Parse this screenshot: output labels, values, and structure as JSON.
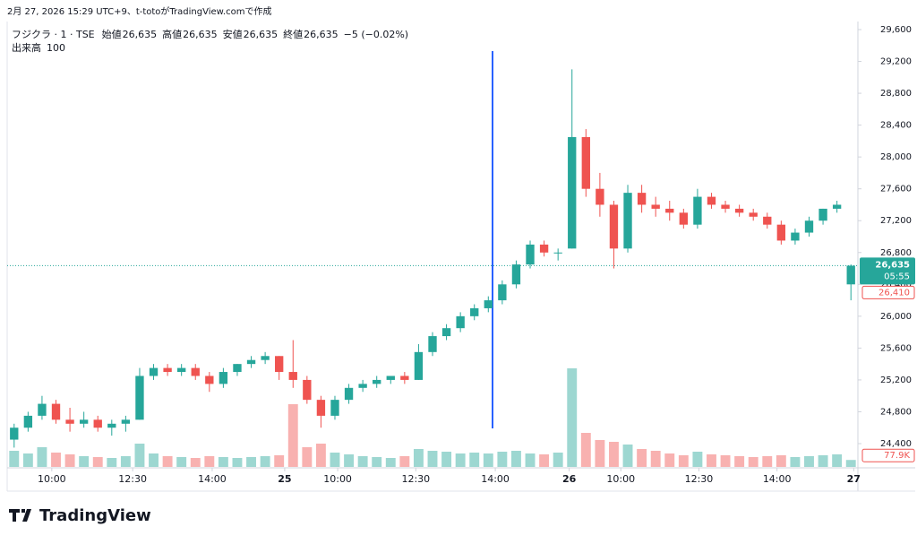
{
  "chart_data": {
    "type": "candlestick",
    "caption": "2月 27, 2026 15:29 UTC+9、t-totoがTradingView.comで作成",
    "legend": {
      "symbol": "フジクラ · 1 · TSE",
      "fields": [
        {
          "label": "始値",
          "value": "26,635"
        },
        {
          "label": "高値",
          "value": "26,635"
        },
        {
          "label": "安値",
          "value": "26,635"
        },
        {
          "label": "終値",
          "value": "26,635"
        }
      ],
      "change": "−5 (−0.02%)",
      "volume_name": "出来高",
      "volume_value": "100"
    },
    "up_color": "#26a69a",
    "down_color": "#ef5350",
    "grid": false,
    "xlim": [
      0,
      61
    ],
    "xticks": [
      {
        "value": 3.2,
        "label": "10:00"
      },
      {
        "value": 9.0,
        "label": "12:30"
      },
      {
        "value": 14.7,
        "label": "14:00"
      },
      {
        "value": 19.9,
        "label": "25"
      },
      {
        "value": 23.7,
        "label": "10:00"
      },
      {
        "value": 29.3,
        "label": "12:30"
      },
      {
        "value": 35.0,
        "label": "14:00"
      },
      {
        "value": 40.3,
        "label": "26"
      },
      {
        "value": 44.0,
        "label": "10:00"
      },
      {
        "value": 49.6,
        "label": "12:30"
      },
      {
        "value": 55.2,
        "label": "14:00"
      },
      {
        "value": 60.7,
        "label": "27"
      }
    ],
    "ylim": [
      24330,
      29650
    ],
    "yticks": [
      {
        "value": 24400,
        "label": "24,400"
      },
      {
        "value": 24800,
        "label": "24,800"
      },
      {
        "value": 25200,
        "label": "25,200"
      },
      {
        "value": 25600,
        "label": "25,600"
      },
      {
        "value": 26000,
        "label": "26,000"
      },
      {
        "value": 26400,
        "label": "26,400"
      },
      {
        "value": 26800,
        "label": "26,800"
      },
      {
        "value": 27200,
        "label": "27,200"
      },
      {
        "value": 27600,
        "label": "27,600"
      },
      {
        "value": 28000,
        "label": "28,000"
      },
      {
        "value": 28400,
        "label": "28,400"
      },
      {
        "value": 28800,
        "label": "28,800"
      },
      {
        "value": 29200,
        "label": "29,200"
      },
      {
        "value": 29600,
        "label": "29,600"
      }
    ],
    "open": [
      24450,
      24600,
      24750,
      24900,
      24700,
      24650,
      24700,
      24600,
      24650,
      24700,
      25250,
      25350,
      25300,
      25350,
      25250,
      25150,
      25300,
      25400,
      25450,
      25500,
      25300,
      25200,
      24950,
      24750,
      24950,
      25100,
      25150,
      25200,
      25250,
      25200,
      25550,
      25750,
      25850,
      26000,
      26100,
      26200,
      26400,
      26650,
      26900,
      26800,
      26850,
      28250,
      27600,
      27400,
      26850,
      27550,
      27400,
      27350,
      27300,
      27150,
      27500,
      27400,
      27350,
      27300,
      27250,
      27150,
      26950,
      27050,
      27200,
      27350,
      26400
    ],
    "high": [
      24650,
      24800,
      25000,
      24950,
      24850,
      24800,
      24750,
      24700,
      24750,
      25350,
      25400,
      25400,
      25400,
      25400,
      25300,
      25350,
      25400,
      25500,
      25550,
      25500,
      25700,
      25250,
      25000,
      25000,
      25150,
      25200,
      25250,
      25250,
      25300,
      25650,
      25800,
      25900,
      26050,
      26150,
      26250,
      26450,
      26700,
      26950,
      26950,
      26850,
      29100,
      28350,
      27800,
      27450,
      27650,
      27650,
      27500,
      27450,
      27350,
      27600,
      27550,
      27450,
      27400,
      27350,
      27300,
      27200,
      27100,
      27250,
      27350,
      27450,
      26650
    ],
    "low": [
      24350,
      24550,
      24700,
      24650,
      24550,
      24600,
      24550,
      24500,
      24550,
      24700,
      25200,
      25250,
      25250,
      25200,
      25050,
      25100,
      25250,
      25350,
      25400,
      25200,
      25100,
      24900,
      24600,
      24700,
      24900,
      25050,
      25100,
      25150,
      25150,
      25200,
      25500,
      25700,
      25800,
      25950,
      26050,
      26150,
      26350,
      26600,
      26750,
      26700,
      26850,
      27500,
      27250,
      26600,
      26800,
      27300,
      27250,
      27200,
      27100,
      27100,
      27350,
      27300,
      27250,
      27200,
      27100,
      26900,
      26900,
      27000,
      27150,
      27300,
      26200
    ],
    "close": [
      24600,
      24750,
      24900,
      24700,
      24650,
      24700,
      24600,
      24650,
      24700,
      25250,
      25350,
      25300,
      25350,
      25250,
      25150,
      25300,
      25400,
      25450,
      25500,
      25300,
      25200,
      24950,
      24750,
      24950,
      25100,
      25150,
      25200,
      25250,
      25200,
      25550,
      25750,
      25850,
      26000,
      26100,
      26200,
      26400,
      26650,
      26900,
      26800,
      26800,
      28250,
      27600,
      27400,
      26850,
      27550,
      27400,
      27350,
      27300,
      27150,
      27500,
      27400,
      27350,
      27300,
      27250,
      27150,
      26950,
      27050,
      27200,
      27350,
      27400,
      26635
    ],
    "volume": [
      180000,
      150000,
      220000,
      160000,
      140000,
      120000,
      110000,
      100000,
      120000,
      260000,
      150000,
      120000,
      110000,
      100000,
      120000,
      110000,
      100000,
      110000,
      120000,
      130000,
      700000,
      220000,
      260000,
      160000,
      140000,
      120000,
      110000,
      100000,
      120000,
      200000,
      180000,
      170000,
      150000,
      160000,
      150000,
      170000,
      180000,
      150000,
      140000,
      160000,
      1100000,
      380000,
      300000,
      280000,
      250000,
      200000,
      180000,
      150000,
      130000,
      170000,
      140000,
      130000,
      120000,
      110000,
      120000,
      130000,
      110000,
      120000,
      130000,
      140000,
      77900
    ],
    "volume_ylim": [
      0,
      1200000
    ],
    "volume_label": "77.9K",
    "last_price": {
      "value": 26635,
      "label": "26,635"
    },
    "countdown": "05:55",
    "reference_price": {
      "value": 26410,
      "label": "26,410"
    },
    "brand": "TradingView"
  }
}
